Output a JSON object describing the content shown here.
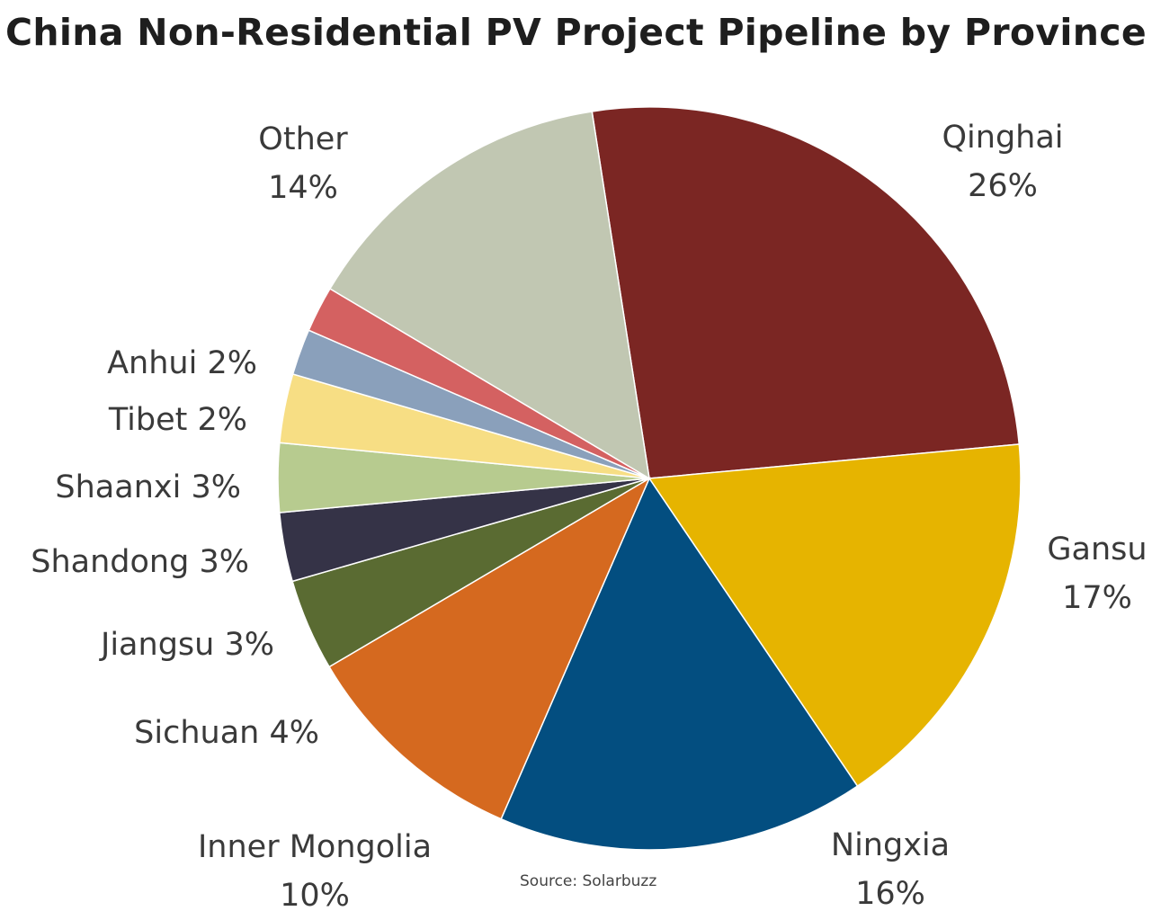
{
  "chart_data": {
    "type": "pie",
    "title": "China Non-Residential PV Project Pipeline by Province",
    "source": "Source: Solarbuzz",
    "slices": [
      {
        "label": "Qinghai",
        "value": 26,
        "value_label": "26%",
        "color": "#7b2623"
      },
      {
        "label": "Gansu",
        "value": 17,
        "value_label": "17%",
        "color": "#e6b400"
      },
      {
        "label": "Ningxia",
        "value": 16,
        "value_label": "16%",
        "color": "#034e80"
      },
      {
        "label": "Inner Mongolia",
        "value": 10,
        "value_label": "10%",
        "color": "#d5691f"
      },
      {
        "label": "Sichuan",
        "value": 4,
        "value_label": "4%",
        "color": "#5a6b32"
      },
      {
        "label": "Jiangsu",
        "value": 3,
        "value_label": "3%",
        "color": "#353347"
      },
      {
        "label": "Shandong",
        "value": 3,
        "value_label": "3%",
        "color": "#b7cb8f"
      },
      {
        "label": "Shaanxi",
        "value": 3,
        "value_label": "3%",
        "color": "#f7de84"
      },
      {
        "label": "Tibet",
        "value": 2,
        "value_label": "2%",
        "color": "#8aa0bb"
      },
      {
        "label": "Anhui",
        "value": 2,
        "value_label": "2%",
        "color": "#d46161"
      },
      {
        "label": "Other",
        "value": 14,
        "value_label": "14%",
        "color": "#c1c7b2"
      }
    ]
  }
}
